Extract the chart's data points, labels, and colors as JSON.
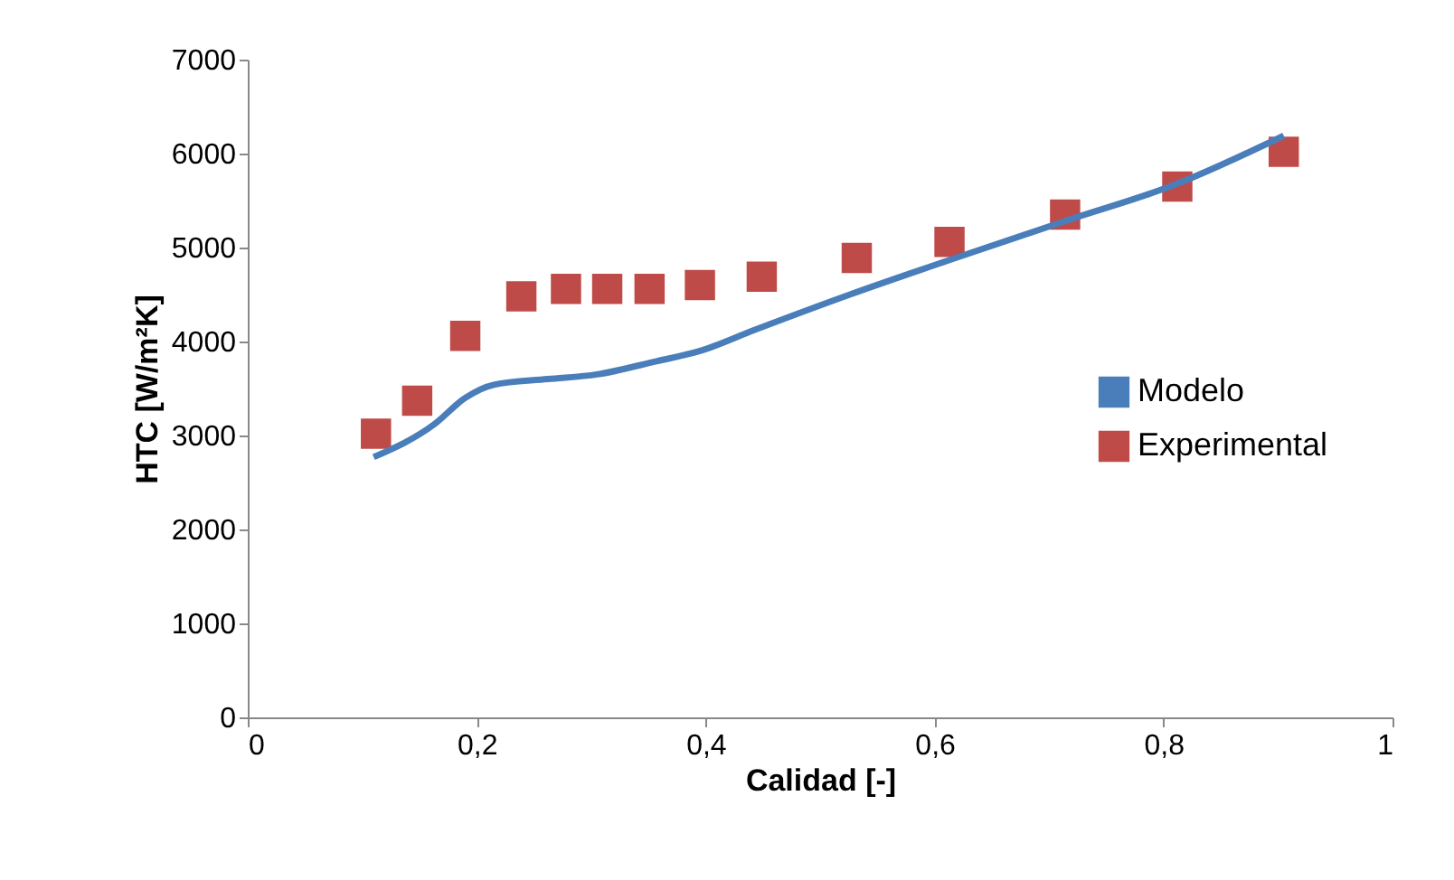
{
  "chart_data": {
    "type": "line",
    "xlabel": "Calidad  [-]",
    "ylabel": "HTC [W/m²K]",
    "xlim": [
      0,
      1
    ],
    "xticks": [
      {
        "value": 0,
        "label": "0"
      },
      {
        "value": 0.2,
        "label": "0,2"
      },
      {
        "value": 0.4,
        "label": "0,4"
      },
      {
        "value": 0.6,
        "label": "0,6"
      },
      {
        "value": 0.8,
        "label": "0,8"
      },
      {
        "value": 1,
        "label": "1"
      }
    ],
    "ylim": [
      0,
      7000
    ],
    "yticks": [
      0,
      1000,
      2000,
      3000,
      4000,
      5000,
      6000,
      7000
    ],
    "grid": false,
    "legend": "right",
    "series": [
      {
        "name": "Modelo",
        "color": "#4a7ebb",
        "marker": "none",
        "line_style": "solid",
        "x": [
          0.11,
          0.163,
          0.19,
          0.215,
          0.262,
          0.305,
          0.357,
          0.395,
          0.442,
          0.526,
          0.616,
          0.716,
          0.81,
          0.905
        ],
        "values": [
          2770,
          3120,
          3400,
          3540,
          3600,
          3650,
          3790,
          3900,
          4120,
          4500,
          4880,
          5290,
          5670,
          6190
        ]
      },
      {
        "name": "Experimental",
        "type": "scatter",
        "color": "#be4b48",
        "marker": "square",
        "x": [
          0.112,
          0.148,
          0.19,
          0.239,
          0.278,
          0.314,
          0.351,
          0.395,
          0.449,
          0.532,
          0.613,
          0.714,
          0.812,
          0.905
        ],
        "values": [
          3020,
          3370,
          4060,
          4480,
          4560,
          4560,
          4560,
          4600,
          4690,
          4890,
          5060,
          5350,
          5650,
          6020
        ]
      }
    ]
  }
}
